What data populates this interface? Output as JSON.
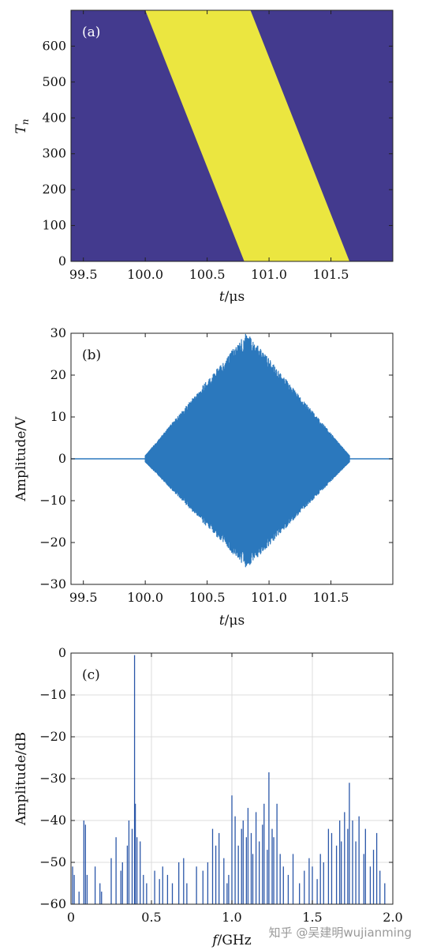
{
  "colors": {
    "heat_background": "#433a8e",
    "heat_band": "#ebe640",
    "signal": "#2b78bd",
    "spectrum": "#2a56a8",
    "grid": "#dcdcdc"
  },
  "watermark": "知乎 @吴建明wujianming",
  "chart_data": [
    {
      "type": "heatmap",
      "panel_label": "(a)",
      "xlabel_italic": "t",
      "xlabel_rest": "/μs",
      "ylabel_base": "T",
      "ylabel_sub": "n",
      "xlim": [
        99.4,
        102.0
      ],
      "ylim": [
        700,
        0
      ],
      "x_ticks": [
        99.5,
        100.0,
        100.5,
        101.0,
        101.5
      ],
      "x_tick_labels": [
        "99.5",
        "100.0",
        "100.5",
        "101.0",
        "101.5"
      ],
      "y_ticks": [
        0,
        100,
        200,
        300,
        400,
        500,
        600
      ],
      "y_tick_labels": [
        "0",
        "100",
        "200",
        "300",
        "400",
        "500",
        "600"
      ],
      "band": {
        "top_start": 100.0,
        "top_end": 100.85,
        "bottom_start": 100.8,
        "bottom_end": 101.65
      }
    },
    {
      "type": "line",
      "panel_label": "(b)",
      "xlabel_italic": "t",
      "xlabel_rest": "/μs",
      "ylabel": "Amplitude/V",
      "xlim": [
        99.4,
        102.0
      ],
      "ylim": [
        -30,
        30
      ],
      "x_ticks": [
        99.5,
        100.0,
        100.5,
        101.0,
        101.5
      ],
      "x_tick_labels": [
        "99.5",
        "100.0",
        "100.5",
        "101.0",
        "101.5"
      ],
      "y_ticks": [
        30,
        20,
        10,
        0,
        -10,
        -20,
        -30
      ],
      "y_tick_labels": [
        "30",
        "20",
        "10",
        "0",
        "−10",
        "−20",
        "−30"
      ],
      "envelope": {
        "x": [
          99.4,
          100.0,
          100.82,
          101.65,
          102.0
        ],
        "upper": [
          0,
          0,
          29.5,
          0,
          0
        ],
        "lower": [
          0,
          0,
          -25.5,
          0,
          0
        ]
      }
    },
    {
      "type": "line",
      "panel_label": "(c)",
      "xlabel_italic": "f",
      "xlabel_rest": "/GHz",
      "ylabel": "Amplitude/dB",
      "xlim": [
        0,
        2.0
      ],
      "ylim": [
        -60,
        0
      ],
      "grid": true,
      "x_ticks": [
        0,
        0.5,
        1.0,
        1.5,
        2.0
      ],
      "x_tick_labels": [
        "0",
        "0.5",
        "1.0",
        "1.5",
        "2.0"
      ],
      "y_ticks": [
        0,
        -10,
        -20,
        -30,
        -40,
        -50,
        -60
      ],
      "y_tick_labels": [
        "0",
        "−10",
        "−20",
        "−30",
        "−40",
        "−50",
        "−60"
      ],
      "peaks": {
        "f": [
          0.01,
          0.02,
          0.05,
          0.08,
          0.09,
          0.1,
          0.15,
          0.18,
          0.19,
          0.25,
          0.28,
          0.31,
          0.32,
          0.35,
          0.36,
          0.38,
          0.395,
          0.4,
          0.41,
          0.43,
          0.45,
          0.47,
          0.52,
          0.55,
          0.57,
          0.6,
          0.63,
          0.67,
          0.7,
          0.72,
          0.78,
          0.82,
          0.85,
          0.88,
          0.9,
          0.92,
          0.95,
          0.97,
          0.98,
          1.0,
          1.02,
          1.04,
          1.06,
          1.07,
          1.09,
          1.1,
          1.12,
          1.13,
          1.15,
          1.17,
          1.19,
          1.2,
          1.22,
          1.23,
          1.25,
          1.26,
          1.28,
          1.3,
          1.32,
          1.35,
          1.38,
          1.42,
          1.45,
          1.48,
          1.5,
          1.53,
          1.55,
          1.57,
          1.6,
          1.62,
          1.65,
          1.67,
          1.68,
          1.7,
          1.72,
          1.73,
          1.75,
          1.77,
          1.79,
          1.82,
          1.83,
          1.86,
          1.88,
          1.9,
          1.92,
          1.95
        ],
        "db": [
          -51,
          -53,
          -57,
          -40,
          -41,
          -53,
          -51,
          -55,
          -57,
          -49,
          -44,
          -52,
          -50,
          -46,
          -40,
          -42,
          -0.5,
          -36,
          -44,
          -45,
          -53,
          -55,
          -52,
          -54,
          -51,
          -53,
          -55,
          -50,
          -49,
          -55,
          -51,
          -52,
          -50,
          -42,
          -46,
          -43,
          -49,
          -55,
          -53,
          -34,
          -39,
          -46,
          -42,
          -40,
          -44,
          -37,
          -43,
          -48,
          -38,
          -45,
          -41,
          -36,
          -47,
          -28.5,
          -42,
          -44,
          -36,
          -48,
          -51,
          -53,
          -48,
          -55,
          -52,
          -49,
          -51,
          -54,
          -48,
          -50,
          -42,
          -43,
          -46,
          -40,
          -45,
          -38,
          -42,
          -31,
          -40,
          -45,
          -39,
          -48,
          -42,
          -51,
          -47,
          -43,
          -52,
          -55
        ]
      }
    }
  ]
}
